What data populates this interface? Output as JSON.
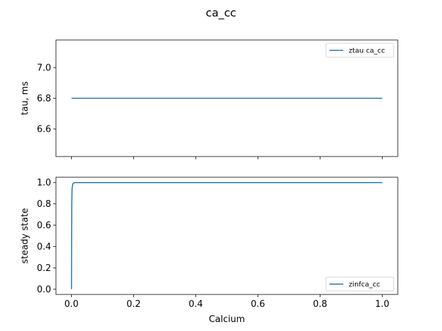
{
  "figure_title": "ca_cc",
  "chart_data": [
    {
      "type": "line",
      "ylabel": "tau, ms",
      "xlabel": "",
      "xlim": [
        -0.05,
        1.05
      ],
      "ylim": [
        6.42,
        7.18
      ],
      "x_ticks": [
        0.0,
        0.2,
        0.4,
        0.6,
        0.8,
        1.0
      ],
      "x_tick_labels_visible": false,
      "y_ticks": [
        6.6,
        6.8,
        7.0
      ],
      "y_tick_labels": [
        "6.6",
        "6.8",
        "7.0"
      ],
      "legend_position": "upper right",
      "series": [
        {
          "name": "ztau ca_cc",
          "color": "#1f77b4",
          "x": [
            0.0,
            1.0
          ],
          "values": [
            6.8,
            6.8
          ]
        }
      ]
    },
    {
      "type": "line",
      "ylabel": "steady state",
      "xlabel": "Calcium",
      "xlim": [
        -0.05,
        1.05
      ],
      "ylim": [
        -0.05,
        1.05
      ],
      "x_ticks": [
        0.0,
        0.2,
        0.4,
        0.6,
        0.8,
        1.0
      ],
      "x_tick_labels": [
        "0.0",
        "0.2",
        "0.4",
        "0.6",
        "0.8",
        "1.0"
      ],
      "y_ticks": [
        0.0,
        0.2,
        0.4,
        0.6,
        0.8,
        1.0
      ],
      "y_tick_labels": [
        "0.0",
        "0.2",
        "0.4",
        "0.6",
        "0.8",
        "1.0"
      ],
      "legend_position": "lower right",
      "series": [
        {
          "name": "zinfca_cc",
          "color": "#1f77b4",
          "x": [
            0.0,
            0.0005,
            0.001,
            0.002,
            0.003,
            0.005,
            0.01,
            1.0
          ],
          "values": [
            0.0,
            0.5,
            0.8,
            0.94,
            0.97,
            0.99,
            1.0,
            1.0
          ]
        }
      ]
    }
  ]
}
